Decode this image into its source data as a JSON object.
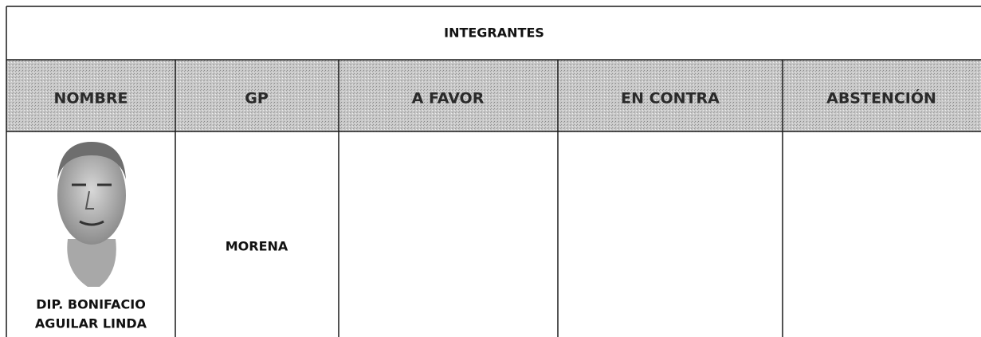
{
  "header": {
    "title": "INTEGRANTES"
  },
  "table": {
    "columns": [
      "NOMBRE",
      "GP",
      "A FAVOR",
      "EN CONTRA",
      "ABSTENCIÓN"
    ],
    "rows": [
      {
        "name": [
          "DIP. BONIFACIO",
          "AGUILAR LINDA"
        ],
        "gp": "MORENA"
      }
    ]
  }
}
